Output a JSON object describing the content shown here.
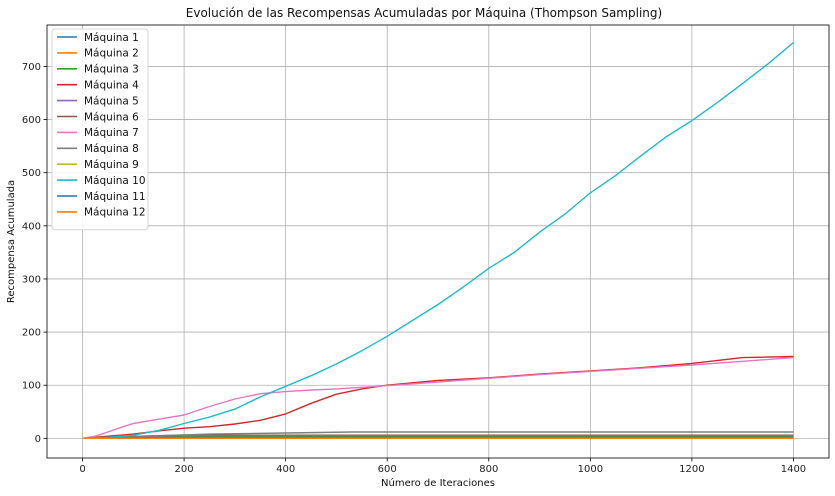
{
  "chart_data": {
    "type": "line",
    "title": "Evolución de las Recompensas Acumuladas por Máquina (Thompson Sampling)",
    "xlabel": "Número de Iteraciones",
    "ylabel": "Recompensa Acumulada",
    "xlim": [
      -70,
      1470
    ],
    "ylim": [
      -37,
      778
    ],
    "xticks": [
      0,
      200,
      400,
      600,
      800,
      1000,
      1200,
      1400
    ],
    "yticks": [
      0,
      100,
      200,
      300,
      400,
      500,
      600,
      700
    ],
    "grid": true,
    "legend_position": "top-left",
    "series": [
      {
        "name": "Máquina 1",
        "color": "#1f77b4",
        "x": [
          0,
          60,
          100,
          1400
        ],
        "y": [
          0,
          1,
          2,
          2
        ]
      },
      {
        "name": "Máquina 2",
        "color": "#ff7f0e",
        "x": [
          0,
          50,
          90,
          1400
        ],
        "y": [
          0,
          1,
          1,
          1
        ]
      },
      {
        "name": "Máquina 3",
        "color": "#2ca02c",
        "x": [
          0,
          80,
          120,
          1400
        ],
        "y": [
          0,
          2,
          3,
          3
        ]
      },
      {
        "name": "Máquina 4",
        "color": "#d62728",
        "x": [
          0,
          50,
          100,
          150,
          200,
          250,
          300,
          350,
          400,
          450,
          500,
          550,
          600,
          700,
          800,
          900,
          1000,
          1100,
          1200,
          1300,
          1400
        ],
        "y": [
          0,
          4,
          8,
          14,
          19,
          22,
          27,
          34,
          46,
          66,
          83,
          93,
          100,
          109,
          114,
          121,
          127,
          133,
          141,
          152,
          154
        ]
      },
      {
        "name": "Máquina 5",
        "color": "#9467bd",
        "x": [
          0,
          70,
          110,
          1400
        ],
        "y": [
          0,
          1,
          2,
          2
        ]
      },
      {
        "name": "Máquina 6",
        "color": "#8c564b",
        "x": [
          0,
          40,
          80,
          150,
          200,
          1400
        ],
        "y": [
          0,
          2,
          3,
          5,
          6,
          6
        ]
      },
      {
        "name": "Máquina 7",
        "color": "#e377c2",
        "x": [
          0,
          25,
          50,
          80,
          100,
          150,
          200,
          250,
          300,
          350,
          400,
          450,
          500,
          550,
          600,
          700,
          800,
          900,
          1000,
          1100,
          1200,
          1300,
          1400
        ],
        "y": [
          0,
          4,
          12,
          22,
          28,
          36,
          44,
          60,
          74,
          84,
          88,
          91,
          93,
          96,
          99,
          106,
          113,
          120,
          126,
          132,
          138,
          145,
          152
        ]
      },
      {
        "name": "Máquina 8",
        "color": "#7f7f7f",
        "x": [
          0,
          60,
          120,
          180,
          250,
          400,
          530,
          1400
        ],
        "y": [
          0,
          2,
          4,
          6,
          8,
          10,
          12,
          12
        ]
      },
      {
        "name": "Máquina 9",
        "color": "#bcbd22",
        "x": [
          0,
          50,
          90,
          1400
        ],
        "y": [
          0,
          1,
          1,
          1
        ]
      },
      {
        "name": "Máquina 10",
        "color": "#17becf",
        "x": [
          0,
          50,
          100,
          150,
          200,
          250,
          300,
          350,
          400,
          450,
          500,
          550,
          600,
          650,
          700,
          750,
          800,
          850,
          900,
          950,
          1000,
          1050,
          1100,
          1150,
          1200,
          1250,
          1300,
          1350,
          1400
        ],
        "y": [
          0,
          2,
          6,
          15,
          28,
          40,
          55,
          78,
          98,
          118,
          140,
          165,
          192,
          222,
          252,
          285,
          320,
          350,
          388,
          422,
          462,
          495,
          532,
          568,
          598,
          632,
          668,
          705,
          745
        ]
      },
      {
        "name": "Máquina 11",
        "color": "#1f77b4",
        "x": [
          0,
          100,
          150,
          1400
        ],
        "y": [
          0,
          1,
          1,
          1
        ]
      },
      {
        "name": "Máquina 12",
        "color": "#ff7f0e",
        "x": [
          0,
          100,
          1400
        ],
        "y": [
          0,
          0,
          0
        ]
      }
    ]
  }
}
